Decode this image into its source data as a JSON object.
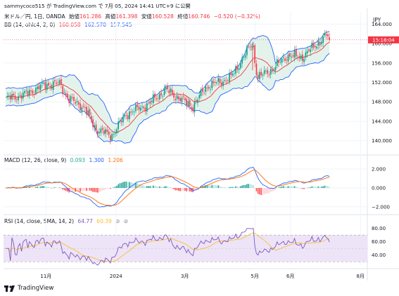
{
  "attribution": "sammycoco515 が TradingView.com で 7月 05, 2024 14:41 UTC+9 に公開",
  "header": {
    "symbol": "米ドル／円, 1日, OANDA",
    "open_label": "始値",
    "open": "161.286",
    "high_label": "高値",
    "high": "161.398",
    "low_label": "安値",
    "low": "160.528",
    "close_label": "終値",
    "close": "160.746",
    "change": "−0.520 (−0.32%)"
  },
  "bb_legend": {
    "name": "BB (14, ohlc4, 2, 0)",
    "v1": "160.058",
    "v2": "162.570",
    "v3": "157.545"
  },
  "macd_legend": {
    "name": "MACD (12, 26, close, 9)",
    "v1": "0.093",
    "v2": "1.300",
    "v3": "1.206"
  },
  "rsi_legend": {
    "name": "RSI (14, close, SMA, 14, 2)",
    "v1": "64.77",
    "v2": "60.39",
    "v3": "⊘",
    "v4": "⊘"
  },
  "currency": "JPY",
  "price_tag": "15:18:04",
  "brand": "TradingView",
  "colors": {
    "up": "#089981",
    "down": "#f23645",
    "basis": "#f23645",
    "bands": "#2962ff",
    "bandFill": "#d9efe6",
    "macd": "#2962ff",
    "signal": "#ff6d00",
    "rsi": "#7e57c2",
    "rsiMA": "#fbc02d",
    "rsiBg": "#ede4f7",
    "text": "#131722",
    "grid": "#f0f3fa"
  },
  "chart_data": [
    {
      "type": "candlestick",
      "title": "米ドル／円, 1日, OANDA",
      "ylim": [
        137.5,
        166.5
      ],
      "y_ticks": [
        140.0,
        144.0,
        148.0,
        152.0,
        156.0,
        160.0,
        164.0
      ],
      "y_tick_labels": [
        "140.000",
        "144.000",
        "148.000",
        "152.000",
        "156.000",
        "160.000",
        "164.000"
      ],
      "x_labels": [
        "11月",
        "2024",
        "3月",
        "5月",
        "6月",
        "8月"
      ],
      "price_path": [
        [
          "2023-09-25",
          148.5
        ],
        [
          "2023-10-13",
          149.5
        ],
        [
          "2023-10-31",
          151.5
        ],
        [
          "2023-11-13",
          151.8
        ],
        [
          "2023-11-21",
          148.5
        ],
        [
          "2023-12-04",
          147.0
        ],
        [
          "2023-12-14",
          142.5
        ],
        [
          "2023-12-28",
          141.0
        ],
        [
          "2024-01-10",
          145.5
        ],
        [
          "2024-01-29",
          147.5
        ],
        [
          "2024-02-13",
          150.5
        ],
        [
          "2024-03-08",
          147.0
        ],
        [
          "2024-03-19",
          151.0
        ],
        [
          "2024-04-10",
          153.0
        ],
        [
          "2024-04-29",
          160.2
        ],
        [
          "2024-05-03",
          153.0
        ],
        [
          "2024-05-15",
          154.5
        ],
        [
          "2024-05-29",
          157.5
        ],
        [
          "2024-06-11",
          157.2
        ],
        [
          "2024-07-03",
          161.8
        ],
        [
          "2024-07-05",
          160.75
        ]
      ],
      "bollinger": {
        "basis": 160.058,
        "upper": 162.57,
        "lower": 157.545
      }
    },
    {
      "type": "bar",
      "title": "MACD (12, 26, close, 9)",
      "ylim": [
        -2.6,
        2.6
      ],
      "y_ticks": [
        2.0,
        0.0,
        -2.0
      ],
      "y_tick_labels": [
        "2.000",
        "0.000",
        "−2.000"
      ],
      "series": [
        {
          "name": "MACD",
          "last": 1.3
        },
        {
          "name": "Signal",
          "last": 1.206
        },
        {
          "name": "Histogram",
          "last": 0.093
        }
      ]
    },
    {
      "type": "line",
      "title": "RSI (14, close, SMA, 14, 2)",
      "ylim": [
        25,
        88
      ],
      "y_ticks": [
        80.0,
        60.0,
        40.0
      ],
      "y_tick_labels": [
        "80.00",
        "60.00",
        "40.00"
      ],
      "bands": [
        30,
        70
      ],
      "series": [
        {
          "name": "RSI",
          "last": 64.77
        },
        {
          "name": "RSI MA",
          "last": 60.39
        }
      ]
    }
  ]
}
